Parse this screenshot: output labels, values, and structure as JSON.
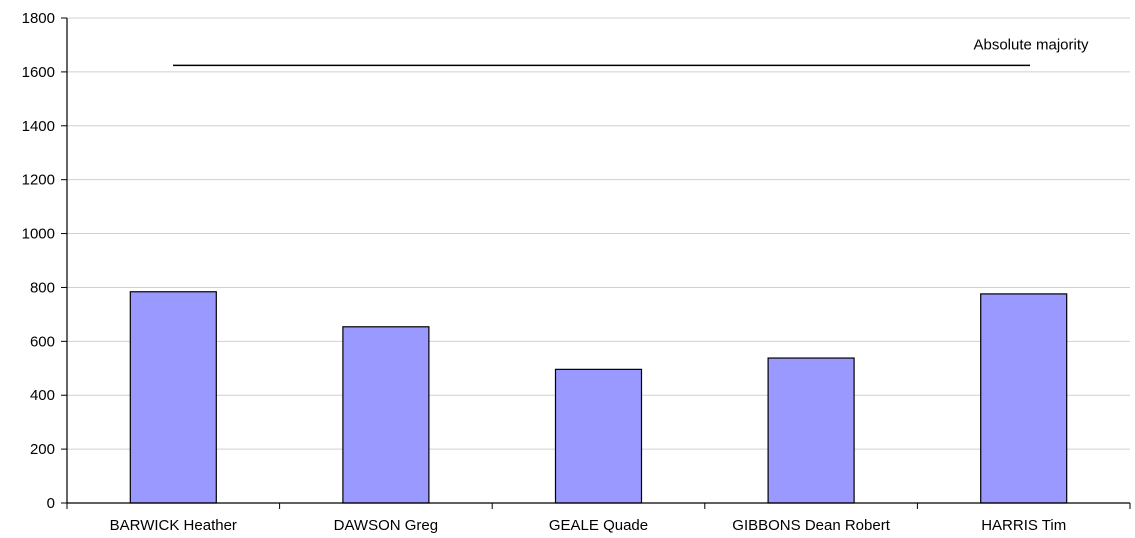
{
  "chart_data": {
    "type": "bar",
    "title": "",
    "xlabel": "",
    "ylabel": "",
    "categories": [
      "BARWICK Heather",
      "DAWSON Greg",
      "GEALE Quade",
      "GIBBONS Dean Robert",
      "HARRIS Tim"
    ],
    "values": [
      784,
      654,
      496,
      538,
      776
    ],
    "ylim": [
      0,
      1800
    ],
    "yticks": [
      0,
      200,
      400,
      600,
      800,
      1000,
      1200,
      1400,
      1600,
      1800
    ],
    "grid": true,
    "bar_color": "#9999ff",
    "bar_edge_color": "#000000",
    "reference_line": {
      "label": "Absolute majority",
      "value": 1624
    }
  }
}
